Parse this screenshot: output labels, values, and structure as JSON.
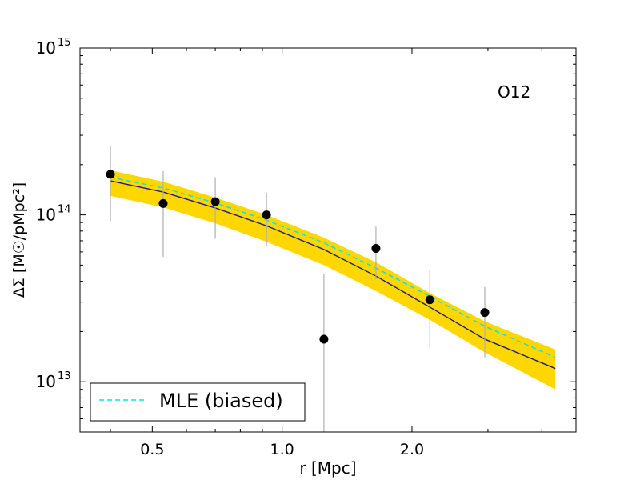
{
  "chart_data": {
    "type": "scatter",
    "title": "",
    "annotation": "O12",
    "xlabel": "r [Mpc]",
    "ylabel": "ΔΣ [M☉/pMpc²]",
    "xscale": "log",
    "yscale": "log",
    "xlim": [
      0.34,
      4.8
    ],
    "ylim": [
      5000000000000,
      1000000000000000
    ],
    "x_ticks": [
      {
        "value": 0.5,
        "label": "0.5"
      },
      {
        "value": 1.0,
        "label": "1.0"
      },
      {
        "value": 2.0,
        "label": "2.0"
      }
    ],
    "y_ticks": [
      {
        "value": 10000000000000,
        "label_base": "10",
        "label_exp": "13"
      },
      {
        "value": 100000000000000,
        "label_base": "10",
        "label_exp": "14"
      },
      {
        "value": 1000000000000000,
        "label_base": "10",
        "label_exp": "15"
      }
    ],
    "points": [
      {
        "x": 0.4,
        "y": 175000000000000,
        "y_low": 92000000000000,
        "y_high": 260000000000000
      },
      {
        "x": 0.53,
        "y": 117000000000000,
        "y_low": 56000000000000,
        "y_high": 183000000000000
      },
      {
        "x": 0.7,
        "y": 120000000000000,
        "y_low": 72000000000000,
        "y_high": 168000000000000
      },
      {
        "x": 0.92,
        "y": 100000000000000,
        "y_low": 65000000000000,
        "y_high": 136000000000000
      },
      {
        "x": 1.25,
        "y": 18000000000000,
        "y_low": 5000000000000,
        "y_high": 44000000000000
      },
      {
        "x": 1.65,
        "y": 63000000000000,
        "y_low": 41000000000000,
        "y_high": 85000000000000
      },
      {
        "x": 2.2,
        "y": 31000000000000,
        "y_low": 16000000000000,
        "y_high": 47000000000000
      },
      {
        "x": 2.95,
        "y": 26000000000000,
        "y_low": 14000000000000,
        "y_high": 37000000000000
      }
    ],
    "band": {
      "color": "#ffd700",
      "x": [
        0.4,
        0.53,
        0.7,
        0.92,
        1.25,
        1.65,
        2.2,
        2.95,
        4.3
      ],
      "lower": [
        130000000000000,
        111000000000000,
        89000000000000,
        69000000000000,
        50000000000000,
        35000000000000,
        23500000000000,
        15000000000000,
        9000000000000
      ],
      "upper": [
        185000000000000,
        158000000000000,
        127000000000000,
        100000000000000,
        73000000000000,
        52000000000000,
        34000000000000,
        23000000000000,
        15600000000000
      ]
    },
    "series": [
      {
        "name": "best fit",
        "style": "solid",
        "color": "#1a1a8c",
        "x": [
          0.4,
          0.53,
          0.7,
          0.92,
          1.25,
          1.65,
          2.2,
          2.95,
          4.3
        ],
        "y": [
          160000000000000,
          137000000000000,
          110000000000000,
          86000000000000,
          62000000000000,
          43000000000000,
          28000000000000,
          18000000000000,
          12000000000000
        ]
      },
      {
        "name": "MLE (biased)",
        "style": "dashed",
        "color": "#00e5ee",
        "x": [
          0.4,
          0.53,
          0.7,
          0.92,
          1.25,
          1.65,
          2.2,
          2.95,
          4.3
        ],
        "y": [
          168000000000000,
          145000000000000,
          118000000000000,
          93000000000000,
          68000000000000,
          48000000000000,
          32500000000000,
          21500000000000,
          14000000000000
        ]
      }
    ],
    "legend": {
      "position": "bottom-left",
      "entries": [
        "MLE (biased)"
      ]
    }
  }
}
